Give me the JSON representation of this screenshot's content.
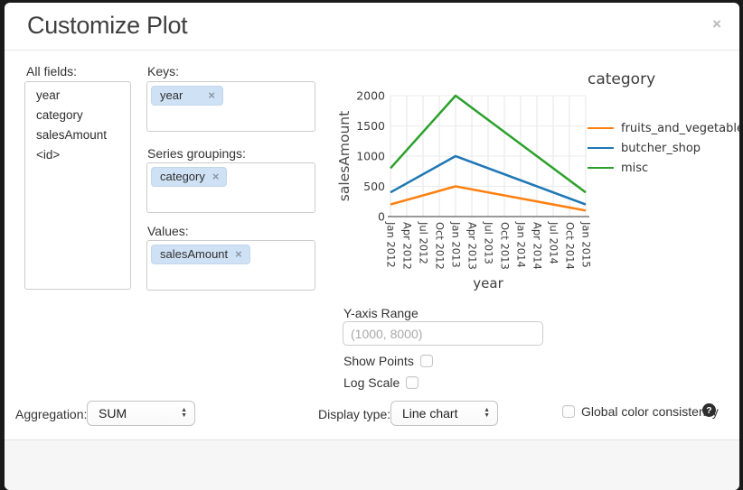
{
  "dialog": {
    "title": "Customize Plot"
  },
  "icons": {
    "close": "×",
    "tag_remove": "×",
    "stepper_up": "▲",
    "stepper_down": "▼",
    "help": "?"
  },
  "fields_panel": {
    "label": "All fields:",
    "items": [
      "year",
      "category",
      "salesAmount",
      "<id>"
    ]
  },
  "mapping": {
    "keys": {
      "label": "Keys:",
      "tags": [
        "year"
      ]
    },
    "series": {
      "label": "Series groupings:",
      "tags": [
        "category"
      ]
    },
    "values": {
      "label": "Values:",
      "tags": [
        "salesAmount"
      ]
    }
  },
  "chart_data": {
    "type": "line",
    "xlabel": "year",
    "ylabel": "salesAmount",
    "legend_title": "category",
    "legend_position": "right",
    "grid": true,
    "ylim": [
      0,
      2000
    ],
    "y_ticks": [
      0,
      500,
      1000,
      1500,
      2000
    ],
    "x_ticks": [
      "Jan 2012",
      "Apr 2012",
      "Jul 2012",
      "Oct 2012",
      "Jan 2013",
      "Apr 2013",
      "Jul 2013",
      "Oct 2013",
      "Jan 2014",
      "Apr 2014",
      "Jul 2014",
      "Oct 2014",
      "Jan 2015"
    ],
    "x": [
      "Jan 2012",
      "Jan 2013",
      "Jan 2015"
    ],
    "series": [
      {
        "name": "fruits_and_vegetable",
        "color": "#ff7f0e",
        "values": [
          200,
          500,
          100
        ]
      },
      {
        "name": "butcher_shop",
        "color": "#1f77b4",
        "values": [
          400,
          1000,
          200
        ]
      },
      {
        "name": "misc",
        "color": "#2ca02c",
        "values": [
          800,
          2000,
          400
        ]
      }
    ]
  },
  "options": {
    "y_range": {
      "label": "Y-axis Range",
      "placeholder": "(1000, 8000)",
      "value": ""
    },
    "show_points": {
      "label": "Show Points",
      "checked": false
    },
    "log_scale": {
      "label": "Log Scale",
      "checked": false
    }
  },
  "footer": {
    "aggregation": {
      "label": "Aggregation:",
      "value": "SUM"
    },
    "display_type": {
      "label": "Display type:",
      "value": "Line chart"
    },
    "global_color": {
      "label": "Global color consistency",
      "checked": false
    }
  }
}
